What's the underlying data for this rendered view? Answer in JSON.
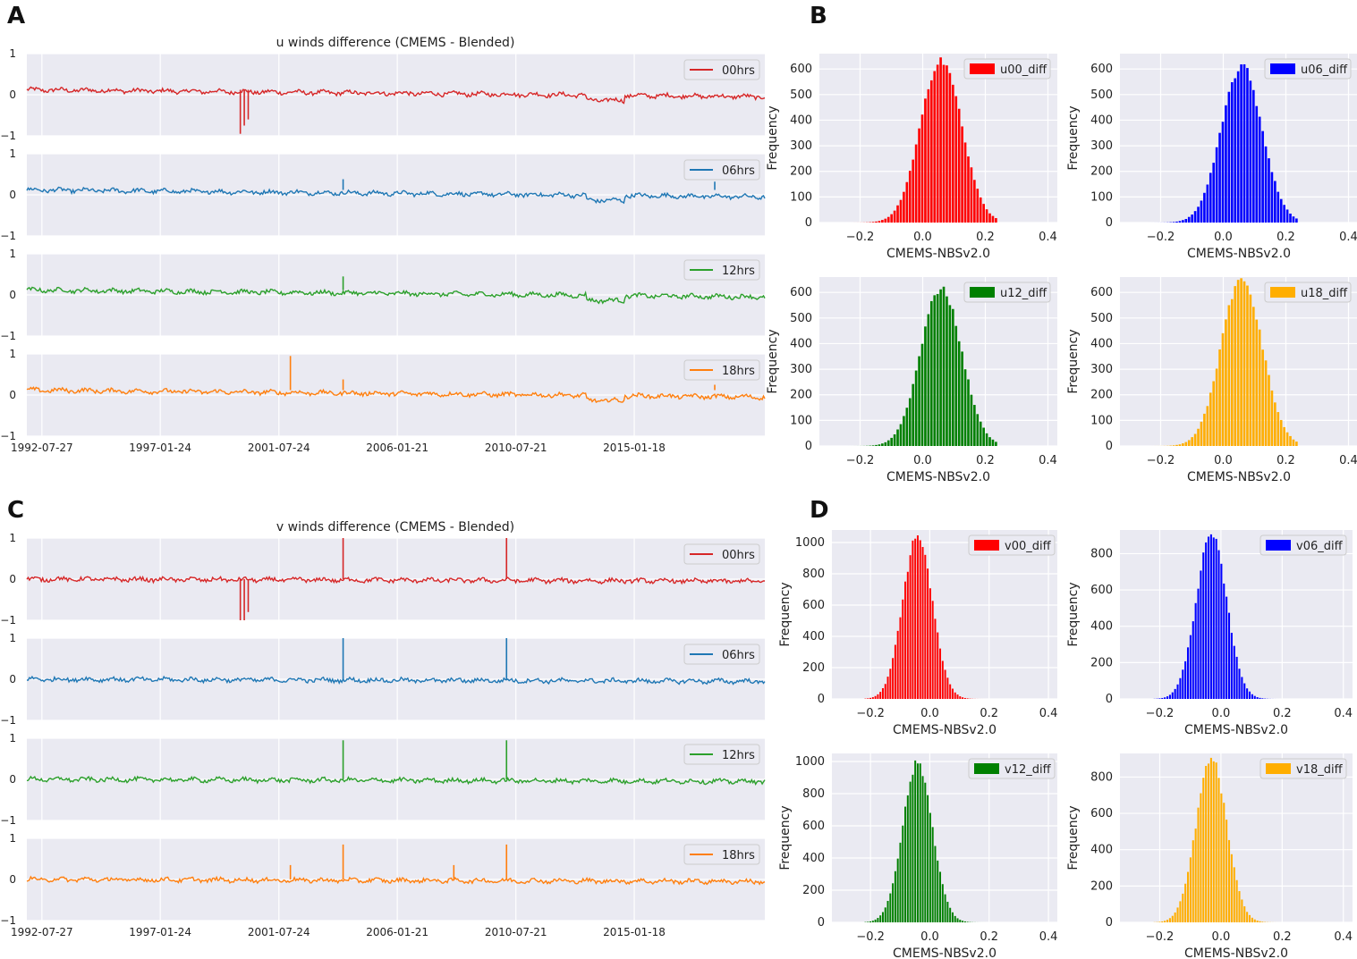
{
  "panel_labels": [
    "A",
    "B",
    "C",
    "D"
  ],
  "chart_data": [
    {
      "type": "line",
      "panel": "A",
      "title": "u winds difference (CMEMS - Blended)",
      "xlabel": "",
      "ylabel": "",
      "x_tick_labels": [
        "1992-07-27",
        "1997-01-24",
        "2001-07-24",
        "2006-01-21",
        "2010-07-21",
        "2015-01-18"
      ],
      "y_ticks": [
        1,
        0,
        -1
      ],
      "y_tick_labels": [
        "1",
        "0",
        "−1"
      ],
      "ylim": [
        -1,
        1
      ],
      "x_range": [
        "1992-01-01",
        "2019-12-31"
      ],
      "subplots": [
        {
          "legend": "00hrs",
          "color": "#d62728",
          "baseline_start": 0.12,
          "baseline_end": -0.05,
          "step_year": 2013.2,
          "step": -0.12,
          "noise": 0.045,
          "spikes": [
            {
              "year": 2000.1,
              "value": -0.95
            },
            {
              "year": 2000.25,
              "value": -0.75
            },
            {
              "year": 2000.4,
              "value": -0.6
            }
          ]
        },
        {
          "legend": "06hrs",
          "color": "#1f77b4",
          "baseline_start": 0.12,
          "baseline_end": -0.05,
          "step_year": 2013.2,
          "step": -0.12,
          "noise": 0.045,
          "spikes": [
            {
              "year": 2004.0,
              "value": 0.38
            },
            {
              "year": 2018.1,
              "value": 0.32
            }
          ]
        },
        {
          "legend": "12hrs",
          "color": "#2ca02c",
          "baseline_start": 0.12,
          "baseline_end": -0.05,
          "step_year": 2013.2,
          "step": -0.12,
          "noise": 0.045,
          "spikes": [
            {
              "year": 2004.0,
              "value": 0.45
            }
          ]
        },
        {
          "legend": "18hrs",
          "color": "#ff7f0e",
          "baseline_start": 0.12,
          "baseline_end": -0.05,
          "step_year": 2013.2,
          "step": -0.12,
          "noise": 0.045,
          "spikes": [
            {
              "year": 2002.0,
              "value": 0.95
            },
            {
              "year": 2004.0,
              "value": 0.38
            },
            {
              "year": 2018.1,
              "value": 0.25
            }
          ]
        }
      ]
    },
    {
      "type": "bar",
      "panel": "B",
      "xlabel": "CMEMS-NBSv2.0",
      "ylabel": "Frequency",
      "x_ticks": [
        -0.2,
        0.0,
        0.2,
        0.4
      ],
      "x_tick_labels": [
        "−0.2",
        "0.0",
        "0.2",
        "0.4"
      ],
      "xlim": [
        -0.33,
        0.43
      ],
      "bin_range": [
        -0.27,
        0.24
      ],
      "bin_count": 52,
      "y_ticks": [
        0,
        100,
        200,
        300,
        400,
        500,
        600
      ],
      "y_tick_labels": [
        "0",
        "100",
        "200",
        "300",
        "400",
        "500",
        "600"
      ],
      "ylim": [
        0,
        660
      ],
      "series": [
        {
          "name": "u00_diff",
          "color": "#ff0000",
          "peak": 640,
          "center": 0.06,
          "sigma": 0.065
        },
        {
          "name": "u06_diff",
          "color": "#0000ff",
          "peak": 610,
          "center": 0.06,
          "sigma": 0.065
        },
        {
          "name": "u12_diff",
          "color": "#008000",
          "peak": 620,
          "center": 0.06,
          "sigma": 0.065
        },
        {
          "name": "u18_diff",
          "color": "#ffae00",
          "peak": 660,
          "center": 0.06,
          "sigma": 0.065
        }
      ]
    },
    {
      "type": "line",
      "panel": "C",
      "title": "v winds difference (CMEMS - Blended)",
      "xlabel": "",
      "ylabel": "",
      "x_tick_labels": [
        "1992-07-27",
        "1997-01-24",
        "2001-07-24",
        "2006-01-21",
        "2010-07-21",
        "2015-01-18"
      ],
      "y_ticks": [
        1,
        0,
        -1
      ],
      "y_tick_labels": [
        "1",
        "0",
        "−1"
      ],
      "ylim": [
        -1,
        1
      ],
      "x_range": [
        "1992-01-01",
        "2019-12-31"
      ],
      "subplots": [
        {
          "legend": "00hrs",
          "color": "#d62728",
          "baseline_start": 0.0,
          "baseline_end": -0.05,
          "step_year": 2013.2,
          "step": 0.0,
          "noise": 0.045,
          "spikes": [
            {
              "year": 2000.1,
              "value": -1.0
            },
            {
              "year": 2000.25,
              "value": -1.0
            },
            {
              "year": 2000.4,
              "value": -0.8
            },
            {
              "year": 2004.0,
              "value": 1.0
            },
            {
              "year": 2010.2,
              "value": 1.0
            }
          ]
        },
        {
          "legend": "06hrs",
          "color": "#1f77b4",
          "baseline_start": 0.0,
          "baseline_end": -0.05,
          "step_year": 2013.2,
          "step": 0.0,
          "noise": 0.045,
          "spikes": [
            {
              "year": 2004.0,
              "value": 1.0
            },
            {
              "year": 2010.2,
              "value": 1.0
            }
          ]
        },
        {
          "legend": "12hrs",
          "color": "#2ca02c",
          "baseline_start": 0.0,
          "baseline_end": -0.05,
          "step_year": 2013.2,
          "step": 0.0,
          "noise": 0.045,
          "spikes": [
            {
              "year": 2004.0,
              "value": 0.95
            },
            {
              "year": 2010.2,
              "value": 0.95
            }
          ]
        },
        {
          "legend": "18hrs",
          "color": "#ff7f0e",
          "baseline_start": 0.0,
          "baseline_end": -0.05,
          "step_year": 2013.2,
          "step": 0.0,
          "noise": 0.045,
          "spikes": [
            {
              "year": 2002.0,
              "value": 0.35
            },
            {
              "year": 2004.0,
              "value": 0.85
            },
            {
              "year": 2008.2,
              "value": 0.35
            },
            {
              "year": 2010.2,
              "value": 0.85
            }
          ]
        }
      ]
    },
    {
      "type": "bar",
      "panel": "D",
      "xlabel": "CMEMS-NBSv2.0",
      "ylabel": "Frequency",
      "x_ticks": [
        -0.2,
        0.0,
        0.2,
        0.4
      ],
      "x_tick_labels": [
        "−0.2",
        "0.0",
        "0.2",
        "0.4"
      ],
      "xlim": [
        -0.33,
        0.43
      ],
      "bin_range": [
        -0.22,
        0.2
      ],
      "bin_count": 50,
      "series": [
        {
          "name": "v00_diff",
          "color": "#ff0000",
          "peak": 1040,
          "center": -0.04,
          "sigma": 0.05,
          "y_ticks": [
            0,
            200,
            400,
            600,
            800,
            1000
          ],
          "y_tick_labels": [
            "0",
            "200",
            "400",
            "600",
            "800",
            "1000"
          ],
          "ylim": [
            0,
            1080
          ]
        },
        {
          "name": "v06_diff",
          "color": "#0000ff",
          "peak": 900,
          "center": -0.03,
          "sigma": 0.05,
          "y_ticks": [
            0,
            200,
            400,
            600,
            800
          ],
          "y_tick_labels": [
            "0",
            "200",
            "400",
            "600",
            "800"
          ],
          "ylim": [
            0,
            930
          ]
        },
        {
          "name": "v12_diff",
          "color": "#008000",
          "peak": 990,
          "center": -0.04,
          "sigma": 0.05,
          "y_ticks": [
            0,
            200,
            400,
            600,
            800,
            1000
          ],
          "y_tick_labels": [
            "0",
            "200",
            "400",
            "600",
            "800",
            "1000"
          ],
          "ylim": [
            0,
            1050
          ]
        },
        {
          "name": "v18_diff",
          "color": "#ffae00",
          "peak": 900,
          "center": -0.03,
          "sigma": 0.05,
          "y_ticks": [
            0,
            200,
            400,
            600,
            800
          ],
          "y_tick_labels": [
            "0",
            "200",
            "400",
            "600",
            "800"
          ],
          "ylim": [
            0,
            930
          ]
        }
      ]
    }
  ]
}
